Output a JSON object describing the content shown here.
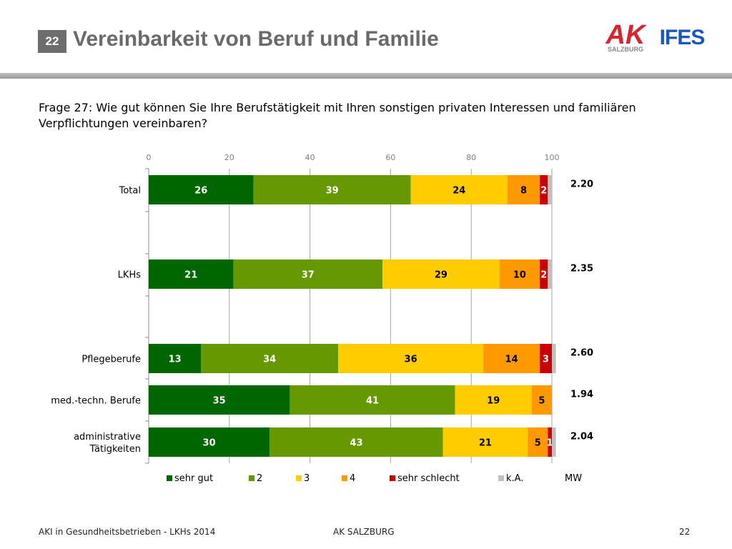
{
  "header": {
    "slide_number": "22",
    "title": "Vereinbarkeit von Beruf und Familie"
  },
  "logos": {
    "ak_letters": "AK",
    "ak_subtitle": "SALZBURG",
    "ifes": "IFES",
    "ak_color": "#d9232d",
    "ifes_color": "#1a56c4"
  },
  "question": "Frage 27: Wie gut können Sie Ihre Berufstätigkeit mit Ihren sonstigen privaten Interessen und familiären Verpflichtungen vereinbaren?",
  "chart_data": {
    "type": "bar",
    "orientation": "horizontal",
    "stacked": true,
    "xlim": [
      0,
      100
    ],
    "xticks": [
      0,
      20,
      40,
      60,
      80,
      100
    ],
    "grid": true,
    "legend_position": "bottom",
    "categories": [
      "Total",
      "LKHs",
      "Pflegeberufe",
      "med.-techn. Berufe",
      "administrative Tätigkeiten"
    ],
    "series": [
      {
        "name": "sehr gut",
        "color": "#006600",
        "values": [
          26,
          21,
          13,
          35,
          30
        ]
      },
      {
        "name": "2",
        "color": "#669900",
        "values": [
          39,
          37,
          34,
          41,
          43
        ]
      },
      {
        "name": "3",
        "color": "#ffcc00",
        "values": [
          24,
          29,
          36,
          19,
          21
        ]
      },
      {
        "name": "4",
        "color": "#ff9900",
        "values": [
          8,
          10,
          14,
          5,
          5
        ]
      },
      {
        "name": "sehr schlecht",
        "color": "#cc0000",
        "values": [
          2,
          2,
          3,
          0,
          1
        ]
      },
      {
        "name": "k.A.",
        "color": "#c0c0c0",
        "values": [
          1,
          1,
          1,
          0,
          1
        ]
      }
    ],
    "mw_label": "MW",
    "mw_values": [
      "2.20",
      "2.35",
      "2.60",
      "1.94",
      "2.04"
    ]
  },
  "footer": {
    "left": "AKI in Gesundheitsbetrieben - LKHs 2014",
    "center": "AK SALZBURG",
    "page": "22"
  }
}
